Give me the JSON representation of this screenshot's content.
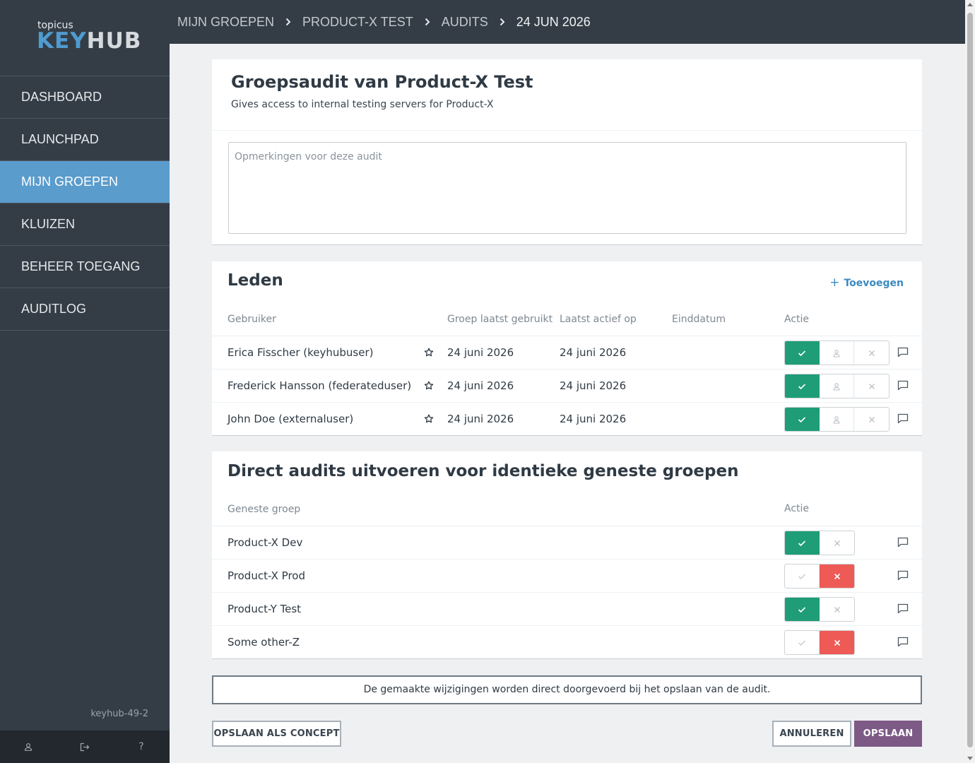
{
  "logo": {
    "small": "topicus",
    "brand_a": "KEY",
    "brand_b": "HUB"
  },
  "nav": [
    {
      "label": "DASHBOARD"
    },
    {
      "label": "LAUNCHPAD"
    },
    {
      "label": "MIJN GROEPEN",
      "active": true
    },
    {
      "label": "KLUIZEN"
    },
    {
      "label": "BEHEER TOEGANG"
    },
    {
      "label": "AUDITLOG"
    }
  ],
  "version": "keyhub-49-2",
  "footer_icons": [
    "user-icon",
    "logout-icon",
    "help-icon"
  ],
  "help_glyph": "?",
  "breadcrumb": [
    "MIJN GROEPEN",
    "PRODUCT-X TEST",
    "AUDITS",
    "24 JUN 2026"
  ],
  "audit": {
    "title": "Groepsaudit van Product-X Test",
    "description": "Gives access to internal testing servers for Product-X",
    "remarks_placeholder": "Opmerkingen voor deze audit",
    "remarks_value": ""
  },
  "members": {
    "title": "Leden",
    "add_plus": "+",
    "add_label": "Toevoegen",
    "columns": [
      "Gebruiker",
      "Groep laatst gebruikt",
      "Laatst actief op",
      "Einddatum",
      "Actie"
    ],
    "rows": [
      {
        "user": "Erica Fisscher (keyhubuser)",
        "group_last_used": "24 juni 2026",
        "last_active": "24 juni 2026",
        "end_date": "",
        "action": "approve"
      },
      {
        "user": "Frederick Hansson (federateduser)",
        "group_last_used": "24 juni 2026",
        "last_active": "24 juni 2026",
        "end_date": "",
        "action": "approve"
      },
      {
        "user": "John Doe (externaluser)",
        "group_last_used": "24 juni 2026",
        "last_active": "24 juni 2026",
        "end_date": "",
        "action": "approve"
      }
    ]
  },
  "nested": {
    "title": "Direct audits uitvoeren voor identieke geneste groepen",
    "columns": [
      "Geneste groep",
      "Actie"
    ],
    "rows": [
      {
        "group": "Product-X Dev",
        "action": "approve"
      },
      {
        "group": "Product-X Prod",
        "action": "reject"
      },
      {
        "group": "Product-Y Test",
        "action": "approve"
      },
      {
        "group": "Some other-Z",
        "action": "reject"
      }
    ]
  },
  "notice": "De gemaakte wijzigingen worden direct doorgevoerd bij het opslaan van de audit.",
  "buttons": {
    "save_concept": "OPSLAAN ALS CONCEPT",
    "cancel": "ANNULEREN",
    "save": "OPSLAAN"
  },
  "colors": {
    "sidebar": "#343d46",
    "active_nav": "#5a9ccc",
    "approve": "#1f9d77",
    "reject": "#ee5a55",
    "primary": "#7d5a86",
    "link": "#3c8ac0"
  }
}
